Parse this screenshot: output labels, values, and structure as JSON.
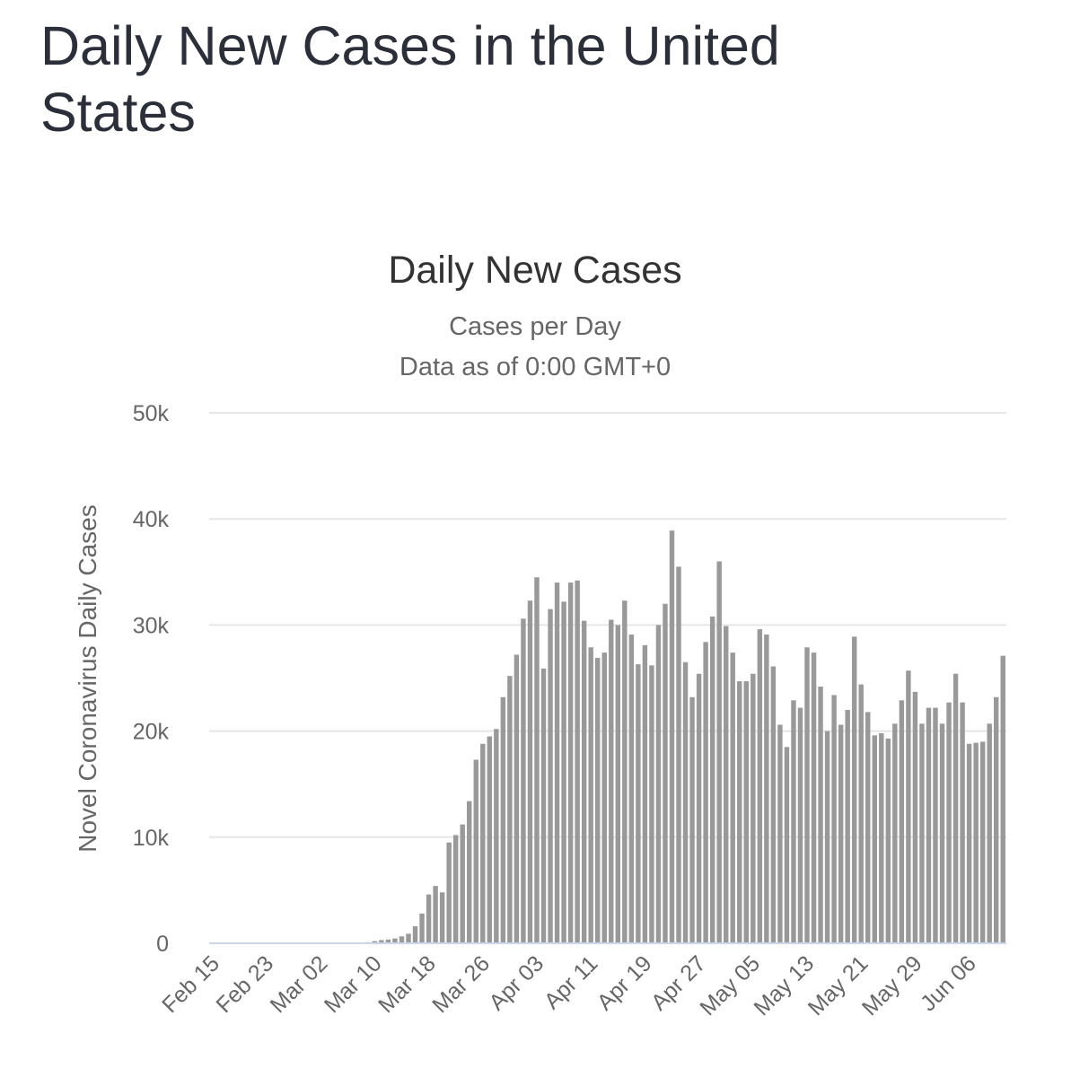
{
  "page": {
    "title": "Daily New Cases in the United States"
  },
  "chart_data": {
    "type": "bar",
    "title": "Daily New Cases",
    "subtitle_lines": [
      "Cases per Day",
      "Data as of 0:00 GMT+0"
    ],
    "ylabel": "Novel Coronavirus Daily Cases",
    "xlabel": "",
    "ylim": [
      0,
      50000
    ],
    "y_ticks": [
      0,
      10000,
      20000,
      30000,
      40000,
      50000
    ],
    "y_tick_labels": [
      "0",
      "10k",
      "20k",
      "30k",
      "40k",
      "50k"
    ],
    "x_tick_labels": [
      "Feb 15",
      "Feb 23",
      "Mar 02",
      "Mar 10",
      "Mar 18",
      "Mar 26",
      "Apr 03",
      "Apr 11",
      "Apr 19",
      "Apr 27",
      "May 05",
      "May 13",
      "May 21",
      "May 29",
      "Jun 06"
    ],
    "x_tick_step": 8,
    "grid": true,
    "legend": "none",
    "bar_color": "#999999",
    "categories": [
      "Feb 15",
      "Feb 16",
      "Feb 17",
      "Feb 18",
      "Feb 19",
      "Feb 20",
      "Feb 21",
      "Feb 22",
      "Feb 23",
      "Feb 24",
      "Feb 25",
      "Feb 26",
      "Feb 27",
      "Feb 28",
      "Feb 29",
      "Mar 01",
      "Mar 02",
      "Mar 03",
      "Mar 04",
      "Mar 05",
      "Mar 06",
      "Mar 07",
      "Mar 08",
      "Mar 09",
      "Mar 10",
      "Mar 11",
      "Mar 12",
      "Mar 13",
      "Mar 14",
      "Mar 15",
      "Mar 16",
      "Mar 17",
      "Mar 18",
      "Mar 19",
      "Mar 20",
      "Mar 21",
      "Mar 22",
      "Mar 23",
      "Mar 24",
      "Mar 25",
      "Mar 26",
      "Mar 27",
      "Mar 28",
      "Mar 29",
      "Mar 30",
      "Mar 31",
      "Apr 01",
      "Apr 02",
      "Apr 03",
      "Apr 04",
      "Apr 05",
      "Apr 06",
      "Apr 07",
      "Apr 08",
      "Apr 09",
      "Apr 10",
      "Apr 11",
      "Apr 12",
      "Apr 13",
      "Apr 14",
      "Apr 15",
      "Apr 16",
      "Apr 17",
      "Apr 18",
      "Apr 19",
      "Apr 20",
      "Apr 21",
      "Apr 22",
      "Apr 23",
      "Apr 24",
      "Apr 25",
      "Apr 26",
      "Apr 27",
      "Apr 28",
      "Apr 29",
      "Apr 30",
      "May 01",
      "May 02",
      "May 03",
      "May 04",
      "May 05",
      "May 06",
      "May 07",
      "May 08",
      "May 09",
      "May 10",
      "May 11",
      "May 12",
      "May 13",
      "May 14",
      "May 15",
      "May 16",
      "May 17",
      "May 18",
      "May 19",
      "May 20",
      "May 21",
      "May 22",
      "May 23",
      "May 24",
      "May 25",
      "May 26",
      "May 27",
      "May 28",
      "May 29",
      "May 30",
      "May 31",
      "Jun 01",
      "Jun 02",
      "Jun 03",
      "Jun 04",
      "Jun 05",
      "Jun 06",
      "Jun 07",
      "Jun 08",
      "Jun 09",
      "Jun 10",
      "Jun 11"
    ],
    "values": [
      0,
      0,
      0,
      0,
      0,
      0,
      0,
      0,
      0,
      0,
      0,
      0,
      0,
      0,
      0,
      20,
      20,
      30,
      30,
      50,
      70,
      60,
      80,
      100,
      200,
      300,
      350,
      450,
      650,
      900,
      1600,
      2800,
      4600,
      5400,
      4800,
      9500,
      10200,
      11200,
      13400,
      17300,
      18800,
      19500,
      20200,
      23200,
      25200,
      27200,
      30600,
      32300,
      34500,
      25900,
      31500,
      34000,
      32200,
      34000,
      34200,
      30400,
      27900,
      26900,
      27400,
      30500,
      30000,
      32300,
      29100,
      26300,
      28100,
      26200,
      30000,
      32000,
      38900,
      35500,
      26500,
      23200,
      25400,
      28400,
      30800,
      36000,
      29900,
      27400,
      24700,
      24700,
      25400,
      29600,
      29100,
      26100,
      20600,
      18500,
      22900,
      22200,
      27900,
      27400,
      24200,
      20000,
      23400,
      20600,
      22000,
      28900,
      24400,
      21800,
      19600,
      19800,
      19300,
      20700,
      22900,
      25700,
      23700,
      20700,
      22200,
      22200,
      20700,
      22700,
      25400,
      22700,
      18800,
      18900,
      19000,
      20700,
      23200,
      27100
    ]
  }
}
